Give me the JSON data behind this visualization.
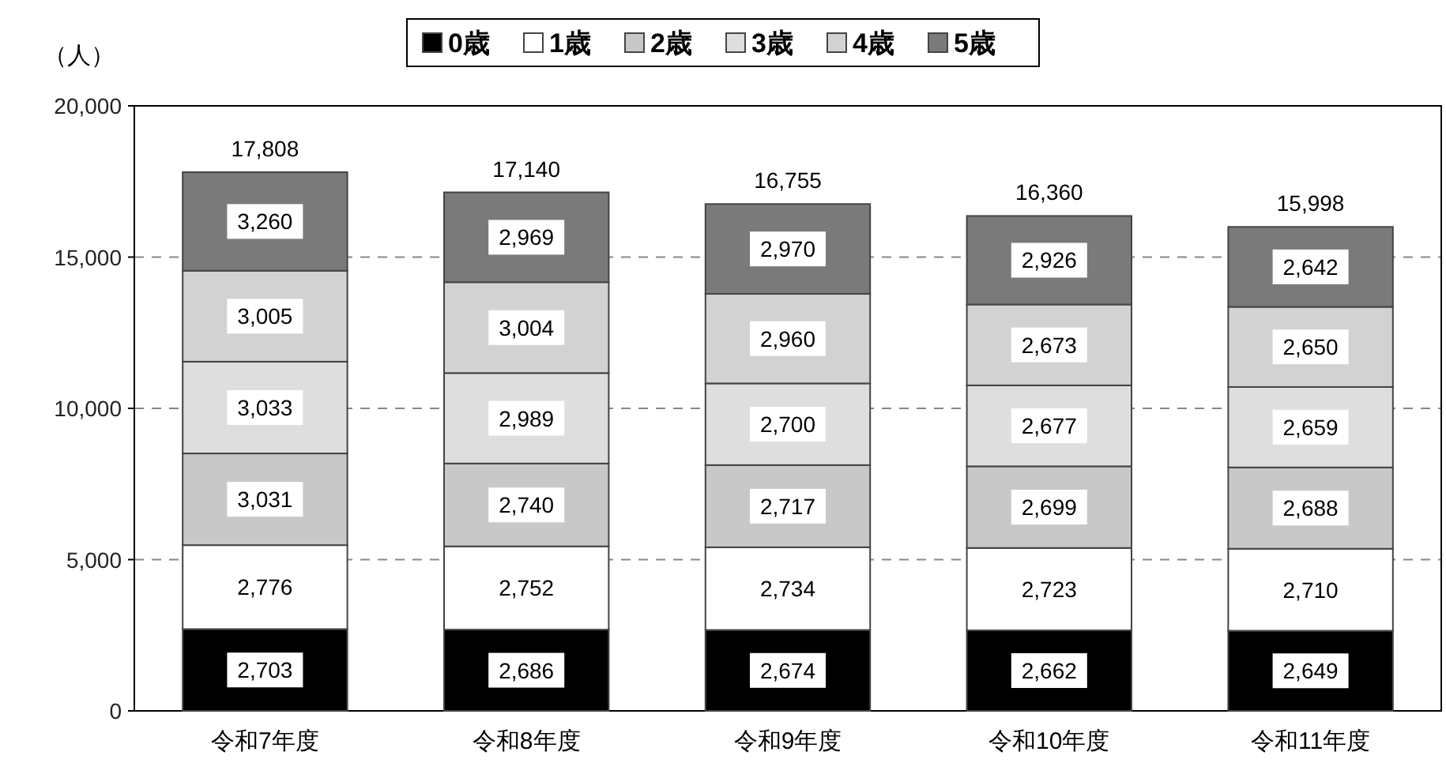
{
  "chart_data": {
    "type": "bar",
    "stacked": true,
    "ylabel": "（人）",
    "categories": [
      "令和7年度",
      "令和8年度",
      "令和9年度",
      "令和10年度",
      "令和11年度"
    ],
    "series": [
      {
        "name": "0歳",
        "color": "#000000",
        "values": [
          2703,
          2686,
          2674,
          2662,
          2649
        ],
        "value_labels": [
          "2,703",
          "2,686",
          "2,674",
          "2,662",
          "2,649"
        ]
      },
      {
        "name": "1歳",
        "color": "#ffffff",
        "values": [
          2776,
          2752,
          2734,
          2723,
          2710
        ],
        "value_labels": [
          "2,776",
          "2,752",
          "2,734",
          "2,723",
          "2,710"
        ]
      },
      {
        "name": "2歳",
        "color": "#c8c8c8",
        "values": [
          3031,
          2740,
          2717,
          2699,
          2688
        ],
        "value_labels": [
          "3,031",
          "2,740",
          "2,717",
          "2,699",
          "2,688"
        ]
      },
      {
        "name": "3歳",
        "color": "#dedede",
        "values": [
          3033,
          2989,
          2700,
          2677,
          2659
        ],
        "value_labels": [
          "3,033",
          "2,989",
          "2,700",
          "2,677",
          "2,659"
        ]
      },
      {
        "name": "4歳",
        "color": "#d2d2d2",
        "values": [
          3005,
          3004,
          2960,
          2673,
          2650
        ],
        "value_labels": [
          "3,005",
          "3,004",
          "2,960",
          "2,673",
          "2,650"
        ]
      },
      {
        "name": "5歳",
        "color": "#7a7a7a",
        "values": [
          3260,
          2969,
          2970,
          2926,
          2642
        ],
        "value_labels": [
          "3,260",
          "2,969",
          "2,970",
          "2,926",
          "2,642"
        ]
      }
    ],
    "totals": [
      "17,808",
      "17,140",
      "16,755",
      "16,360",
      "15,998"
    ],
    "ylim": [
      0,
      20000
    ],
    "yticks": [
      0,
      {
        "value": 5000,
        "label": "5,000"
      },
      {
        "value": 10000,
        "label": "10,000"
      },
      {
        "value": 15000,
        "label": "15,000"
      },
      {
        "value": 20000,
        "label": "20,000"
      }
    ],
    "grid": "y",
    "legend": "top"
  }
}
